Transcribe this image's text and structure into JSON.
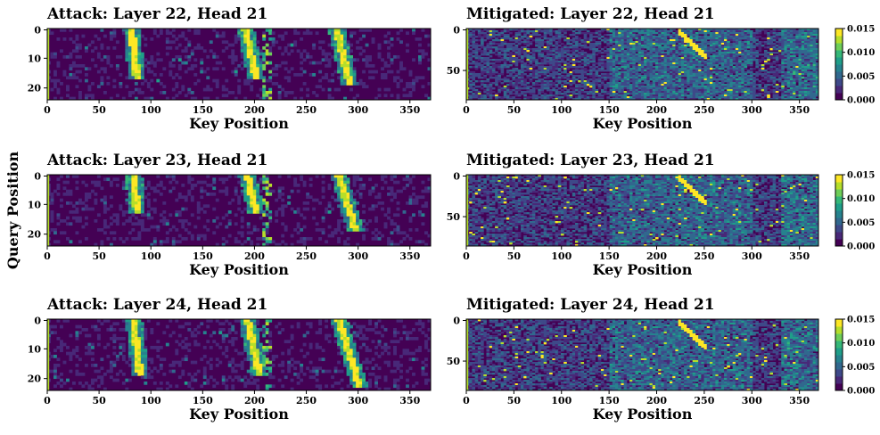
{
  "figure": {
    "ylabel": "Query Position",
    "colors": {
      "viridis": [
        "#440154",
        "#482878",
        "#3e4989",
        "#31688e",
        "#26828e",
        "#1f9e89",
        "#35b779",
        "#6ece58",
        "#b5de2b",
        "#fde725"
      ]
    }
  },
  "chart_data": [
    {
      "type": "heatmap",
      "title": "Attack: Layer 22, Head 21",
      "xlabel": "Key Position",
      "xlim": [
        0,
        370
      ],
      "xticks": [
        "0",
        "50",
        "100",
        "150",
        "200",
        "250",
        "300",
        "350"
      ],
      "ylim": [
        0,
        24
      ],
      "yticks": [
        "0",
        "10",
        "20"
      ],
      "pattern": "attack",
      "seed": 22,
      "stripes": [
        {
          "x0": 80,
          "x1": 85,
          "y0": 0,
          "y1": 16
        },
        {
          "x0": 190,
          "x1": 200,
          "y0": 0,
          "y1": 16
        },
        {
          "x0": 278,
          "x1": 290,
          "y0": 0,
          "y1": 18
        }
      ],
      "clim": [
        0,
        0.015
      ]
    },
    {
      "type": "heatmap",
      "title": "Mitigated: Layer 22, Head 21",
      "xlabel": "Key Position",
      "xlim": [
        0,
        370
      ],
      "xticks": [
        "0",
        "50",
        "100",
        "150",
        "200",
        "250",
        "300",
        "350"
      ],
      "ylim": [
        0,
        85
      ],
      "yticks": [
        "0",
        "50"
      ],
      "pattern": "mitigated",
      "seed": 122,
      "colorbar": true,
      "cbticks": [
        "0.000",
        "0.005",
        "0.010",
        "0.015"
      ],
      "clim": [
        0,
        0.015
      ]
    },
    {
      "type": "heatmap",
      "title": "Attack: Layer 23, Head 21",
      "xlabel": "Key Position",
      "xlim": [
        0,
        370
      ],
      "xticks": [
        "0",
        "50",
        "100",
        "150",
        "200",
        "250",
        "300",
        "350"
      ],
      "ylim": [
        0,
        24
      ],
      "yticks": [
        "0",
        "10",
        "20"
      ],
      "pattern": "attack",
      "seed": 23,
      "stripes": [
        {
          "x0": 82,
          "x1": 85,
          "y0": 0,
          "y1": 12
        },
        {
          "x0": 192,
          "x1": 200,
          "y0": 0,
          "y1": 12
        },
        {
          "x0": 280,
          "x1": 296,
          "y0": 0,
          "y1": 18
        }
      ],
      "clim": [
        0,
        0.015
      ]
    },
    {
      "type": "heatmap",
      "title": "Mitigated: Layer 23, Head 21",
      "xlabel": "Key Position",
      "xlim": [
        0,
        370
      ],
      "xticks": [
        "0",
        "50",
        "100",
        "150",
        "200",
        "250",
        "300",
        "350"
      ],
      "ylim": [
        0,
        85
      ],
      "yticks": [
        "0",
        "50"
      ],
      "pattern": "mitigated",
      "seed": 123,
      "colorbar": true,
      "cbticks": [
        "0.000",
        "0.005",
        "0.010",
        "0.015"
      ],
      "clim": [
        0,
        0.015
      ]
    },
    {
      "type": "heatmap",
      "title": "Attack: Layer 24, Head 21",
      "xlabel": "Key Position",
      "xlim": [
        0,
        370
      ],
      "xticks": [
        "0",
        "50",
        "100",
        "150",
        "200",
        "250",
        "300",
        "350"
      ],
      "ylim": [
        0,
        24
      ],
      "yticks": [
        "0",
        "10",
        "20"
      ],
      "pattern": "attack",
      "seed": 24,
      "stripes": [
        {
          "x0": 82,
          "x1": 88,
          "y0": 0,
          "y1": 18
        },
        {
          "x0": 192,
          "x1": 203,
          "y0": 0,
          "y1": 18
        },
        {
          "x0": 280,
          "x1": 300,
          "y0": 0,
          "y1": 22
        }
      ],
      "clim": [
        0,
        0.015
      ]
    },
    {
      "type": "heatmap",
      "title": "Mitigated: Layer 24, Head 21",
      "xlabel": "Key Position",
      "xlim": [
        0,
        370
      ],
      "xticks": [
        "0",
        "50",
        "100",
        "150",
        "200",
        "250",
        "300",
        "350"
      ],
      "ylim": [
        0,
        85
      ],
      "yticks": [
        "0",
        "50"
      ],
      "pattern": "mitigated",
      "seed": 124,
      "colorbar": true,
      "cbticks": [
        "0.000",
        "0.005",
        "0.010",
        "0.015"
      ],
      "clim": [
        0,
        0.015
      ]
    }
  ]
}
